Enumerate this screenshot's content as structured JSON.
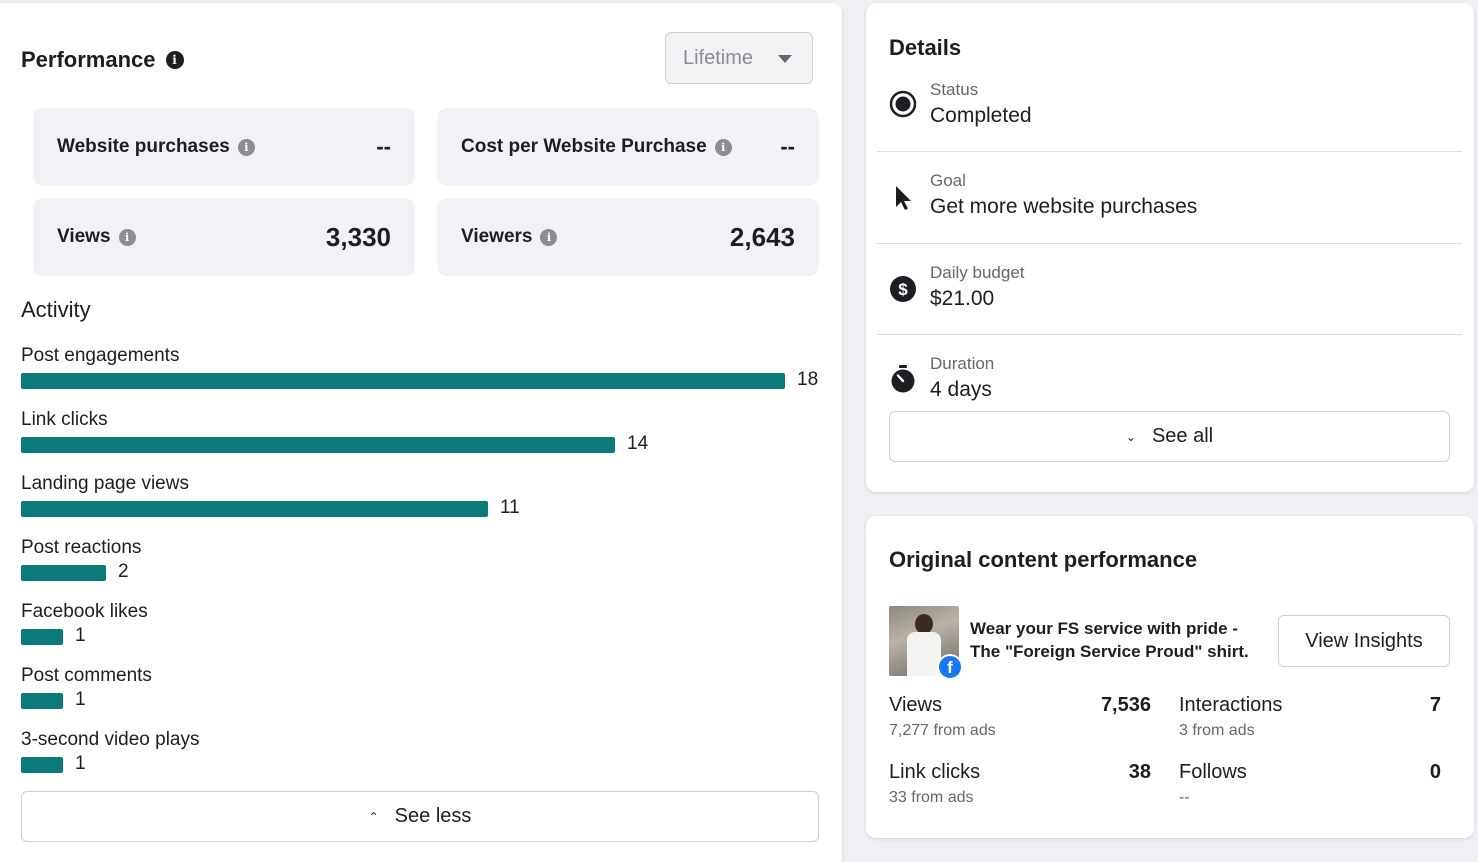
{
  "performance": {
    "title": "Performance",
    "dropdown_value": "Lifetime",
    "metrics": [
      {
        "label": "Website purchases",
        "value": "--"
      },
      {
        "label": "Cost per Website Purchase",
        "value": "--"
      },
      {
        "label": "Views",
        "value": "3,330"
      },
      {
        "label": "Viewers",
        "value": "2,643"
      }
    ],
    "activity_title": "Activity",
    "activity": [
      {
        "label": "Post engagements",
        "value": "18"
      },
      {
        "label": "Link clicks",
        "value": "14"
      },
      {
        "label": "Landing page views",
        "value": "11"
      },
      {
        "label": "Post reactions",
        "value": "2"
      },
      {
        "label": "Facebook likes",
        "value": "1"
      },
      {
        "label": "Post comments",
        "value": "1"
      },
      {
        "label": "3-second video plays",
        "value": "1"
      }
    ],
    "see_less_label": "See less",
    "bar_color": "#0a7a7d"
  },
  "details": {
    "title": "Details",
    "rows": [
      {
        "label": "Status",
        "value": "Completed",
        "icon": "radio-selected-icon"
      },
      {
        "label": "Goal",
        "value": "Get more website purchases",
        "icon": "cursor-pointer-icon"
      },
      {
        "label": "Daily budget",
        "value": "$21.00",
        "icon": "dollar-circle-icon"
      },
      {
        "label": "Duration",
        "value": "4 days",
        "icon": "stopwatch-icon"
      }
    ],
    "see_all_label": "See all"
  },
  "original": {
    "title": "Original content performance",
    "post_text": "Wear your FS service with pride - The \"Foreign Service Proud\" shirt.",
    "view_insights_label": "View Insights",
    "stats": [
      {
        "name": "Views",
        "value": "7,536",
        "sub": "7,277 from ads"
      },
      {
        "name": "Interactions",
        "value": "7",
        "sub": "3 from ads"
      },
      {
        "name": "Link clicks",
        "value": "38",
        "sub": "33 from ads"
      },
      {
        "name": "Follows",
        "value": "0",
        "sub": "--"
      }
    ],
    "facebook_badge_color": "#1877f2"
  }
}
